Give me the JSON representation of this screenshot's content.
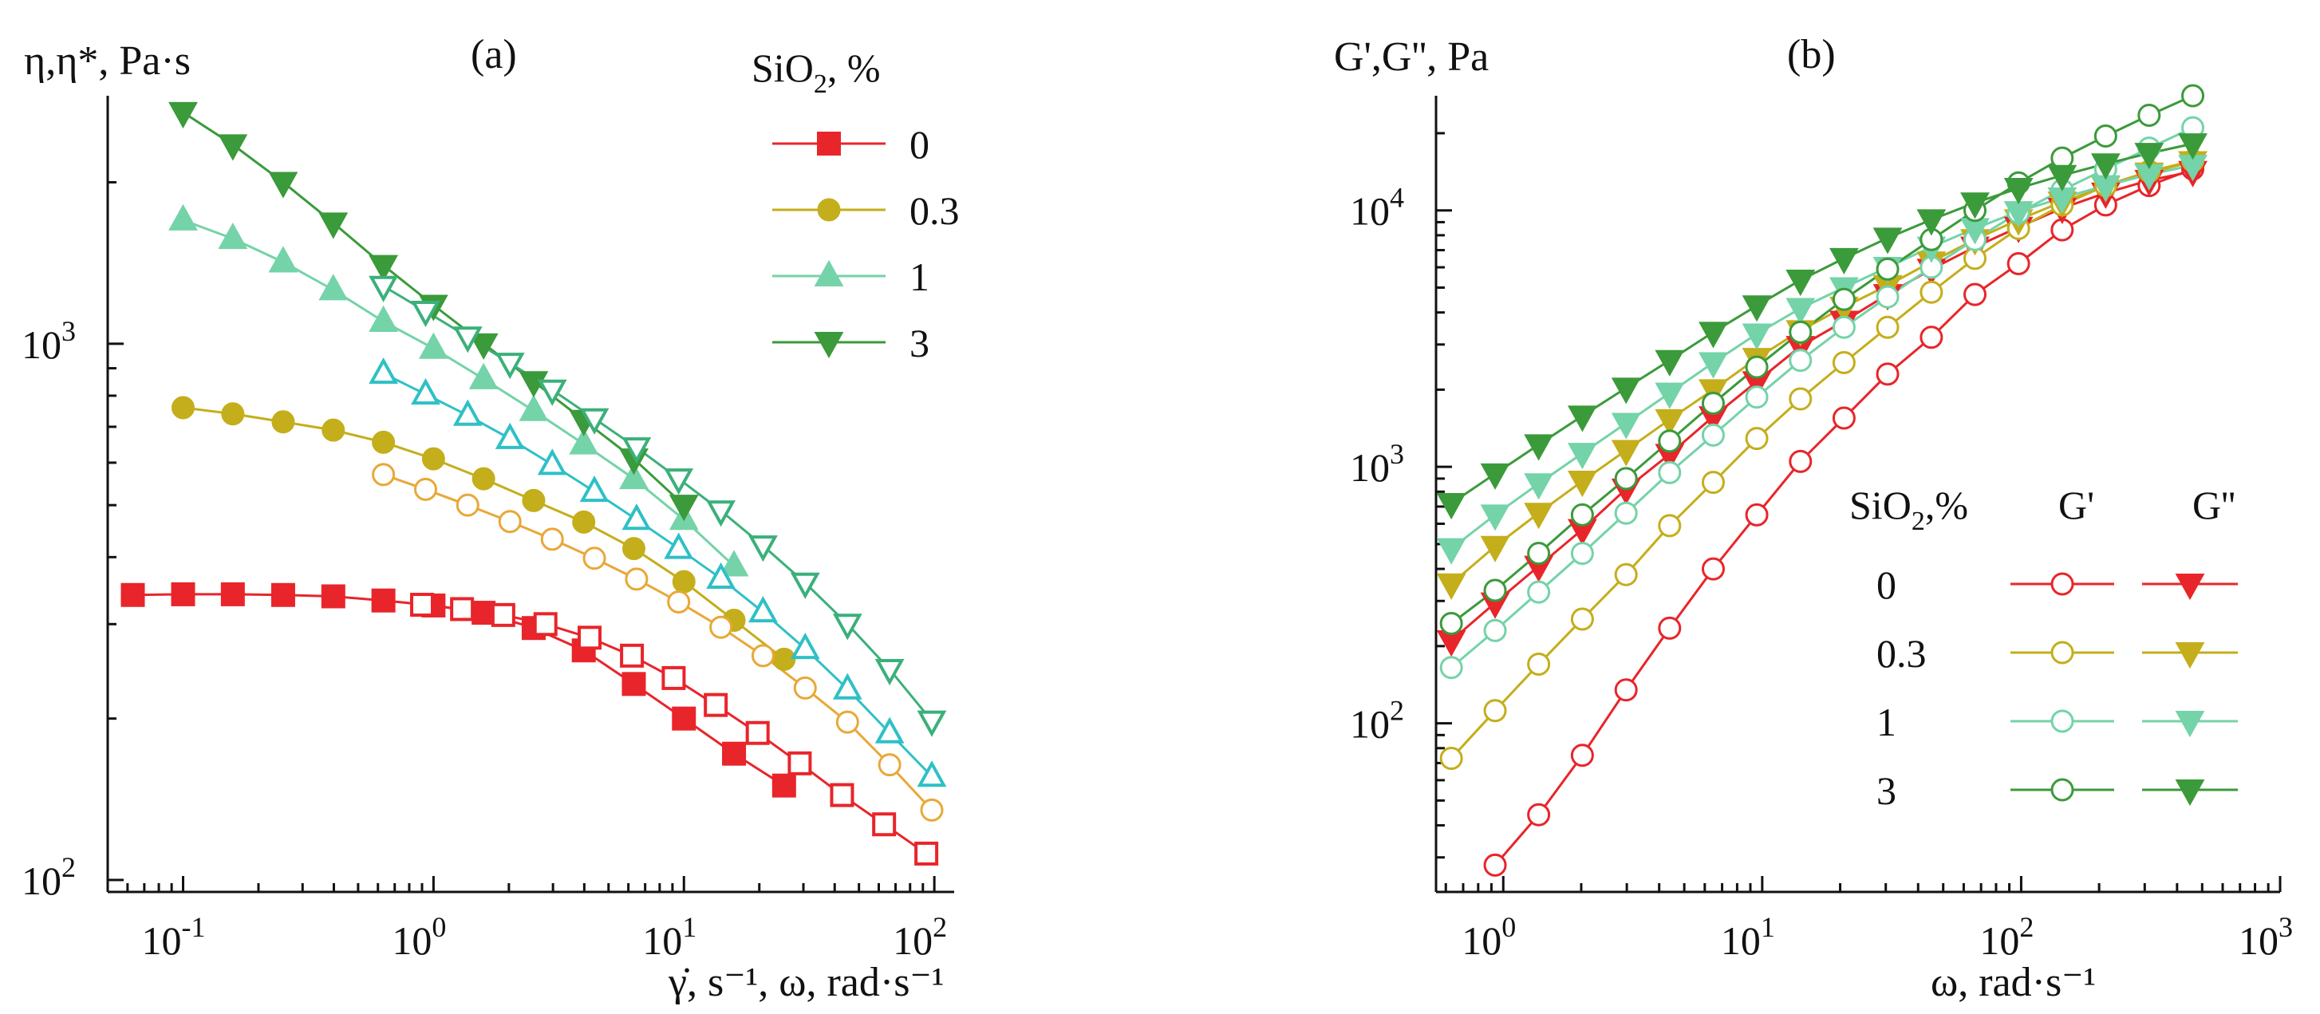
{
  "figure": {
    "panel_a": {
      "panel_label": "(a)",
      "ylabel": "η,η*, Pa·s",
      "xlabel": "γ̇, s⁻¹, ω, rad·s⁻¹",
      "legend_title_main": "SiO",
      "legend_title_sub": "2",
      "legend_title_rest": ", %",
      "yticks": [
        {
          "label": "10",
          "exp": "2"
        },
        {
          "label": "10",
          "exp": "3"
        }
      ],
      "xticks": [
        {
          "label": "10",
          "exp": "-1"
        },
        {
          "label": "10",
          "exp": "0"
        },
        {
          "label": "10",
          "exp": "1"
        },
        {
          "label": "10",
          "exp": "2"
        }
      ],
      "legend": [
        {
          "label": "0",
          "color": "#e8252a",
          "marker": "square"
        },
        {
          "label": "0.3",
          "color": "#c4ae1b",
          "marker": "circle"
        },
        {
          "label": "1",
          "color": "#74d3a8",
          "marker": "triangle-up"
        },
        {
          "label": "3",
          "color": "#3b9a3a",
          "marker": "triangle-down"
        }
      ]
    },
    "panel_b": {
      "panel_label": "(b)",
      "ylabel": "G',G'', Pa",
      "xlabel": "ω, rad·s⁻¹",
      "yticks": [
        {
          "label": "10",
          "exp": "2"
        },
        {
          "label": "10",
          "exp": "3"
        },
        {
          "label": "10",
          "exp": "4"
        }
      ],
      "xticks": [
        {
          "label": "10",
          "exp": "0"
        },
        {
          "label": "10",
          "exp": "1"
        },
        {
          "label": "10",
          "exp": "2"
        },
        {
          "label": "10",
          "exp": "3"
        }
      ],
      "legend_title_main": "SiO",
      "legend_title_sub": "2",
      "legend_title_rest": ",%",
      "legend_col_gp": "G'",
      "legend_col_gpp": "G''",
      "legend": [
        {
          "label": "0",
          "color": "#e8252a"
        },
        {
          "label": "0.3",
          "color": "#c4ae1b"
        },
        {
          "label": "1",
          "color": "#74d3a8"
        },
        {
          "label": "3",
          "color": "#3b9a3a"
        }
      ]
    }
  },
  "chart_data": [
    {
      "type": "scatter",
      "panel": "(a)",
      "xlabel": "γ̇, s⁻¹, ω, rad·s⁻¹",
      "ylabel": "η,η*, Pa·s",
      "xscale": "log",
      "yscale": "log",
      "xlim": [
        0.05,
        120
      ],
      "ylim": [
        95,
        2900
      ],
      "legend_title": "SiO2, %",
      "legend_position": "top-right",
      "series": [
        {
          "name": "0",
          "kind": "filled",
          "marker": "square",
          "color": "#e8252a",
          "x": [
            0.063,
            0.1,
            0.158,
            0.251,
            0.398,
            0.631,
            1.0,
            1.585,
            2.512,
            3.981,
            6.31,
            10.0,
            15.85,
            25.12
          ],
          "y": [
            340,
            341,
            341,
            340,
            338,
            332,
            325,
            315,
            295,
            268,
            232,
            200,
            172,
            150
          ]
        },
        {
          "name": "0",
          "kind": "open",
          "marker": "square",
          "color": "#e8252a",
          "x": [
            0.9,
            1.3,
            1.9,
            2.8,
            4.2,
            6.2,
            9.1,
            13.4,
            19.7,
            29.0,
            42.8,
            63.0,
            92.9
          ],
          "y": [
            326,
            320,
            312,
            300,
            283,
            262,
            238,
            212,
            188,
            165,
            144,
            127,
            112
          ]
        },
        {
          "name": "0.3",
          "kind": "filled",
          "marker": "circle",
          "color": "#c4ae1b",
          "x": [
            0.1,
            0.158,
            0.251,
            0.398,
            0.631,
            1.0,
            1.585,
            2.512,
            3.981,
            6.31,
            10.0,
            15.85,
            25.12
          ],
          "y": [
            760,
            740,
            715,
            690,
            655,
            610,
            560,
            510,
            465,
            415,
            360,
            305,
            258
          ]
        },
        {
          "name": "0.3",
          "kind": "open",
          "marker": "circle",
          "color": "#e8a838",
          "x": [
            0.631,
            0.93,
            1.37,
            2.02,
            2.98,
            4.39,
            6.47,
            9.53,
            14.05,
            20.7,
            30.5,
            45.0,
            66.3,
            97.7
          ],
          "y": [
            570,
            535,
            500,
            466,
            432,
            398,
            364,
            330,
            296,
            262,
            228,
            197,
            164,
            135
          ]
        },
        {
          "name": "1",
          "kind": "filled",
          "marker": "triangle-up",
          "color": "#74d3a8",
          "x": [
            0.1,
            0.158,
            0.251,
            0.398,
            0.631,
            1.0,
            1.585,
            2.512,
            3.981,
            6.31,
            10.0,
            15.85
          ],
          "y": [
            1700,
            1570,
            1420,
            1260,
            1100,
            980,
            860,
            750,
            650,
            560,
            470,
            385
          ]
        },
        {
          "name": "1",
          "kind": "open",
          "marker": "triangle-up",
          "color": "#2ec0c6",
          "x": [
            0.631,
            0.93,
            1.37,
            2.02,
            2.98,
            4.39,
            6.47,
            9.53,
            14.05,
            20.7,
            30.5,
            45.0,
            66.3,
            97.7
          ],
          "y": [
            880,
            805,
            735,
            665,
            595,
            530,
            470,
            415,
            365,
            316,
            270,
            227,
            188,
            156
          ]
        },
        {
          "name": "3",
          "kind": "filled",
          "marker": "triangle-down",
          "color": "#3b9a3a",
          "x": [
            0.1,
            0.158,
            0.251,
            0.398,
            0.631,
            1.0,
            1.585,
            2.512,
            3.981,
            6.31,
            10.0
          ],
          "y": [
            2700,
            2350,
            2000,
            1680,
            1400,
            1180,
            1000,
            850,
            720,
            610,
            500
          ]
        },
        {
          "name": "3",
          "kind": "open",
          "marker": "triangle-down",
          "color": "#3bb07a",
          "x": [
            0.631,
            0.93,
            1.37,
            2.02,
            2.98,
            4.39,
            6.47,
            9.53,
            14.05,
            20.7,
            30.5,
            45.0,
            66.3,
            97.7
          ],
          "y": [
            1280,
            1150,
            1030,
            920,
            820,
            725,
            640,
            560,
            488,
            420,
            358,
            300,
            247,
            198
          ]
        }
      ]
    },
    {
      "type": "scatter",
      "panel": "(b)",
      "xlabel": "ω, rad·s⁻¹",
      "ylabel": "G',G'', Pa",
      "xscale": "log",
      "yscale": "log",
      "xlim": [
        0.55,
        1000
      ],
      "ylim": [
        22,
        28000
      ],
      "legend_title": "SiO2,%",
      "legend_position": "bottom-right",
      "series": [
        {
          "name": "0 G'",
          "marker": "circle-open",
          "color": "#e8252a",
          "x": [
            0.93,
            1.37,
            2.02,
            2.98,
            4.39,
            6.47,
            9.53,
            14.05,
            20.7,
            30.5,
            45.0,
            66.3,
            97.7,
            144,
            212,
            312,
            460
          ],
          "y": [
            28,
            44,
            75,
            135,
            235,
            400,
            650,
            1050,
            1550,
            2300,
            3200,
            4700,
            6200,
            8400,
            10500,
            12500,
            14500
          ]
        },
        {
          "name": "0 G''",
          "marker": "triangle-down",
          "color": "#e8252a",
          "x": [
            0.63,
            0.93,
            1.37,
            2.02,
            2.98,
            4.39,
            6.47,
            9.53,
            14.05,
            20.7,
            30.5,
            45.0,
            66.3,
            97.7,
            144,
            212,
            312,
            460
          ],
          "y": [
            210,
            295,
            410,
            570,
            820,
            1120,
            1570,
            2150,
            2950,
            3700,
            4700,
            5900,
            7200,
            8600,
            10200,
            11700,
            13100,
            14200
          ]
        },
        {
          "name": "0.3 G'",
          "marker": "circle-open",
          "color": "#c4ae1b",
          "x": [
            0.63,
            0.93,
            1.37,
            2.02,
            2.98,
            4.39,
            6.47,
            9.53,
            14.05,
            20.7,
            30.5,
            45.0,
            66.3,
            97.7,
            144,
            212,
            312,
            460
          ],
          "y": [
            73,
            112,
            170,
            255,
            380,
            590,
            870,
            1290,
            1840,
            2550,
            3500,
            4800,
            6500,
            8500,
            10500,
            12500,
            14200,
            15600
          ]
        },
        {
          "name": "0.3 G''",
          "marker": "triangle-down",
          "color": "#c4ae1b",
          "x": [
            0.63,
            0.93,
            1.37,
            2.02,
            2.98,
            4.39,
            6.47,
            9.53,
            14.05,
            20.7,
            30.5,
            45.0,
            66.3,
            97.7,
            144,
            212,
            312,
            460
          ],
          "y": [
            350,
            490,
            660,
            880,
            1160,
            1530,
            2000,
            2650,
            3400,
            4200,
            5100,
            6300,
            7700,
            9200,
            10800,
            12400,
            14000,
            15500
          ]
        },
        {
          "name": "1 G'",
          "marker": "circle-open",
          "color": "#74d3a8",
          "x": [
            0.63,
            0.93,
            1.37,
            2.02,
            2.98,
            4.39,
            6.47,
            9.53,
            14.05,
            20.7,
            30.5,
            45.0,
            66.3,
            97.7,
            144,
            212,
            312,
            460
          ],
          "y": [
            165,
            230,
            325,
            460,
            660,
            950,
            1330,
            1870,
            2600,
            3500,
            4600,
            6000,
            7700,
            9800,
            12000,
            14500,
            17500,
            21000
          ]
        },
        {
          "name": "1 G''",
          "marker": "triangle-down",
          "color": "#74d3a8",
          "x": [
            0.63,
            0.93,
            1.37,
            2.02,
            2.98,
            4.39,
            6.47,
            9.53,
            14.05,
            20.7,
            30.5,
            45.0,
            66.3,
            97.7,
            144,
            212,
            312,
            460
          ],
          "y": [
            480,
            650,
            860,
            1130,
            1480,
            1940,
            2550,
            3300,
            4150,
            5000,
            6000,
            7200,
            8500,
            9900,
            11200,
            12500,
            13800,
            15000
          ]
        },
        {
          "name": "3 G'",
          "marker": "circle-open",
          "color": "#3b9a3a",
          "x": [
            0.63,
            0.93,
            1.37,
            2.02,
            2.98,
            4.39,
            6.47,
            9.53,
            14.05,
            20.7,
            30.5,
            45.0,
            66.3,
            97.7,
            144,
            212,
            312,
            460
          ],
          "y": [
            245,
            330,
            460,
            650,
            900,
            1260,
            1770,
            2450,
            3350,
            4500,
            5900,
            7700,
            10000,
            12800,
            16000,
            19500,
            23500,
            28000
          ]
        },
        {
          "name": "3 G''",
          "marker": "triangle-down",
          "color": "#3b9a3a",
          "x": [
            0.63,
            0.93,
            1.37,
            2.02,
            2.98,
            4.39,
            6.47,
            9.53,
            14.05,
            20.7,
            30.5,
            45.0,
            66.3,
            97.7,
            144,
            212,
            312,
            460
          ],
          "y": [
            720,
            940,
            1220,
            1580,
            2030,
            2600,
            3350,
            4250,
            5350,
            6500,
            7800,
            9200,
            10700,
            12200,
            13700,
            15200,
            16700,
            18200
          ]
        }
      ]
    }
  ]
}
